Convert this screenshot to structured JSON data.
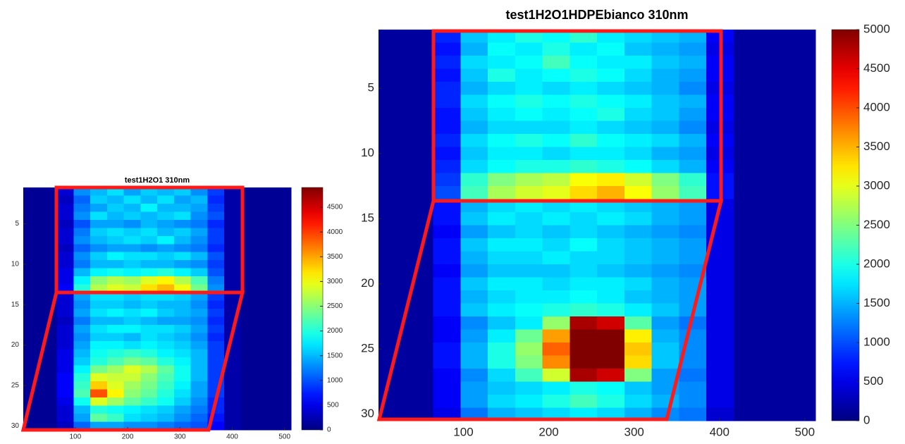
{
  "chart_data": [
    {
      "type": "heatmap",
      "title": "test1H2O1 310nm",
      "colormap": "jet",
      "xbins": [
        0.5,
        32.5,
        64.5,
        96.5,
        128.5,
        160.5,
        192.5,
        224.5,
        256.5,
        288.5,
        320.5,
        352.5,
        384.5,
        416.5,
        448.5,
        480.5,
        512.5
      ],
      "rows": [
        1,
        2,
        3,
        4,
        5,
        6,
        7,
        8,
        9,
        10,
        11,
        12,
        13,
        14,
        15,
        16,
        17,
        18,
        19,
        20,
        21,
        22,
        23,
        24,
        25,
        26,
        27,
        28,
        29,
        30
      ],
      "xlim": [
        0.5,
        512.5
      ],
      "ylim": [
        0.5,
        30.5
      ],
      "xticks": [
        100,
        200,
        300,
        400,
        500
      ],
      "yticks": [
        5,
        10,
        15,
        20,
        25,
        30
      ],
      "clim": [
        0,
        4900
      ],
      "cticks": [
        0,
        500,
        1000,
        1500,
        2000,
        2500,
        3000,
        3500,
        4000,
        4500
      ],
      "values": [
        [
          100,
          100,
          400,
          1300,
          1500,
          1700,
          1400,
          1600,
          1500,
          1600,
          1300,
          900,
          200,
          100,
          100,
          100
        ],
        [
          100,
          100,
          300,
          1100,
          1600,
          1500,
          1700,
          1500,
          1700,
          1400,
          1500,
          800,
          200,
          100,
          100,
          100
        ],
        [
          100,
          100,
          400,
          1200,
          1400,
          1600,
          1500,
          1800,
          1500,
          1500,
          1400,
          900,
          200,
          100,
          100,
          100
        ],
        [
          100,
          100,
          400,
          1300,
          1700,
          1500,
          1600,
          1500,
          1600,
          1700,
          1300,
          1000,
          200,
          100,
          100,
          100
        ],
        [
          100,
          100,
          300,
          1000,
          1400,
          1400,
          1300,
          1500,
          1400,
          1300,
          1200,
          800,
          200,
          100,
          100,
          100
        ],
        [
          100,
          100,
          400,
          1200,
          1600,
          1700,
          1600,
          1700,
          1500,
          1600,
          1400,
          900,
          200,
          100,
          100,
          100
        ],
        [
          100,
          100,
          400,
          1300,
          1500,
          1600,
          1700,
          1600,
          1800,
          1500,
          1300,
          900,
          200,
          100,
          100,
          100
        ],
        [
          100,
          100,
          300,
          1100,
          1300,
          1400,
          1400,
          1300,
          1400,
          1300,
          1200,
          800,
          200,
          100,
          100,
          100
        ],
        [
          100,
          100,
          400,
          1300,
          1600,
          1800,
          1700,
          1700,
          1600,
          1700,
          1500,
          1000,
          200,
          100,
          100,
          100
        ],
        [
          100,
          100,
          400,
          1200,
          1500,
          1500,
          1600,
          1500,
          1500,
          1400,
          1300,
          900,
          200,
          100,
          100,
          100
        ],
        [
          100,
          100,
          500,
          1500,
          1800,
          1900,
          1800,
          1900,
          2000,
          1800,
          1600,
          1000,
          200,
          100,
          100,
          100
        ],
        [
          100,
          100,
          500,
          1800,
          2500,
          2700,
          2600,
          2900,
          3100,
          2700,
          2200,
          1200,
          200,
          100,
          100,
          100
        ],
        [
          100,
          100,
          600,
          2000,
          2700,
          2900,
          2800,
          3200,
          3400,
          3000,
          2400,
          1300,
          200,
          100,
          100,
          100
        ],
        [
          100,
          100,
          400,
          1400,
          1700,
          1700,
          1600,
          1700,
          1700,
          1600,
          1400,
          900,
          200,
          100,
          100,
          100
        ],
        [
          100,
          100,
          400,
          1300,
          1600,
          1600,
          1500,
          1600,
          1500,
          1500,
          1300,
          800,
          200,
          100,
          100,
          100
        ],
        [
          100,
          100,
          400,
          1400,
          1700,
          1800,
          1700,
          1800,
          1600,
          1500,
          1400,
          900,
          200,
          100,
          100,
          100
        ],
        [
          100,
          100,
          300,
          1200,
          1500,
          1500,
          1600,
          1500,
          1400,
          1400,
          1300,
          800,
          200,
          100,
          100,
          100
        ],
        [
          100,
          100,
          400,
          1400,
          1700,
          1800,
          1800,
          1700,
          1700,
          1600,
          1400,
          900,
          200,
          100,
          100,
          100
        ],
        [
          100,
          100,
          400,
          1300,
          1600,
          1600,
          1500,
          1700,
          1600,
          1500,
          1300,
          800,
          200,
          100,
          100,
          100
        ],
        [
          100,
          100,
          400,
          1400,
          1800,
          1800,
          1700,
          1800,
          1700,
          1600,
          1400,
          900,
          200,
          100,
          100,
          100
        ],
        [
          100,
          100,
          500,
          1500,
          1900,
          2000,
          2100,
          2000,
          1800,
          1700,
          1500,
          900,
          200,
          100,
          100,
          100
        ],
        [
          100,
          100,
          500,
          1600,
          2000,
          2200,
          2400,
          2300,
          2000,
          1800,
          1500,
          900,
          200,
          100,
          100,
          100
        ],
        [
          100,
          100,
          500,
          1800,
          2400,
          2600,
          2900,
          2700,
          2300,
          1900,
          1500,
          900,
          200,
          100,
          100,
          100
        ],
        [
          100,
          100,
          600,
          2000,
          2900,
          2800,
          2800,
          2500,
          2200,
          1900,
          1500,
          900,
          200,
          100,
          100,
          100
        ],
        [
          100,
          100,
          600,
          2100,
          3300,
          2900,
          2600,
          2400,
          2100,
          1800,
          1400,
          900,
          200,
          100,
          100,
          100
        ],
        [
          100,
          100,
          600,
          2200,
          3900,
          3100,
          2500,
          2300,
          2000,
          1700,
          1400,
          900,
          200,
          100,
          100,
          100
        ],
        [
          100,
          100,
          500,
          1900,
          2900,
          2600,
          2300,
          2100,
          1900,
          1600,
          1300,
          800,
          200,
          100,
          100,
          100
        ],
        [
          100,
          100,
          400,
          1500,
          2000,
          1900,
          1800,
          1700,
          1600,
          1400,
          1200,
          800,
          200,
          100,
          100,
          100
        ],
        [
          100,
          100,
          400,
          1400,
          2300,
          2100,
          1700,
          1600,
          1500,
          1300,
          1100,
          700,
          200,
          100,
          100,
          100
        ],
        [
          100,
          100,
          300,
          1100,
          1400,
          1400,
          1300,
          1300,
          1200,
          1100,
          1000,
          600,
          200,
          100,
          100,
          100
        ]
      ]
    },
    {
      "type": "heatmap",
      "title": "test1H2O1HDPEbianco 310nm",
      "colormap": "jet",
      "xbins": [
        0.5,
        32.5,
        64.5,
        96.5,
        128.5,
        160.5,
        192.5,
        224.5,
        256.5,
        288.5,
        320.5,
        352.5,
        384.5,
        416.5,
        448.5,
        480.5,
        512.5
      ],
      "rows": [
        1,
        2,
        3,
        4,
        5,
        6,
        7,
        8,
        9,
        10,
        11,
        12,
        13,
        14,
        15,
        16,
        17,
        18,
        19,
        20,
        21,
        22,
        23,
        24,
        25,
        26,
        27,
        28,
        29,
        30
      ],
      "xlim": [
        0.5,
        512.5
      ],
      "ylim": [
        0.5,
        30.5
      ],
      "xticks": [
        100,
        200,
        300,
        400,
        500
      ],
      "yticks": [
        5,
        10,
        15,
        20,
        25,
        30
      ],
      "clim": [
        0,
        5000
      ],
      "cticks": [
        0,
        500,
        1000,
        1500,
        2000,
        2500,
        3000,
        3500,
        4000,
        4500,
        5000
      ],
      "values": [
        [
          150,
          150,
          800,
          1600,
          1800,
          2000,
          1900,
          2100,
          1800,
          1700,
          1600,
          1500,
          600,
          150,
          150,
          150
        ],
        [
          150,
          150,
          700,
          1500,
          1900,
          1800,
          2000,
          1800,
          1900,
          1600,
          1500,
          1400,
          500,
          150,
          150,
          150
        ],
        [
          150,
          150,
          800,
          1700,
          1800,
          1900,
          2200,
          1900,
          1800,
          1800,
          1600,
          1500,
          600,
          150,
          150,
          150
        ],
        [
          150,
          150,
          700,
          1600,
          2000,
          1800,
          1900,
          2000,
          1900,
          1700,
          1500,
          1400,
          600,
          150,
          150,
          150
        ],
        [
          150,
          150,
          800,
          1500,
          1700,
          1800,
          1700,
          1800,
          1700,
          1600,
          1500,
          1300,
          500,
          150,
          150,
          150
        ],
        [
          150,
          150,
          800,
          1700,
          1900,
          2000,
          1900,
          2000,
          1900,
          1800,
          1600,
          1500,
          600,
          150,
          150,
          150
        ],
        [
          150,
          150,
          700,
          1600,
          1800,
          1900,
          1800,
          1900,
          2000,
          1700,
          1600,
          1400,
          600,
          150,
          150,
          150
        ],
        [
          150,
          150,
          700,
          1500,
          1700,
          1700,
          1700,
          1800,
          1700,
          1600,
          1500,
          1300,
          500,
          150,
          150,
          150
        ],
        [
          150,
          150,
          800,
          1700,
          1900,
          2000,
          1900,
          2100,
          1900,
          1800,
          1700,
          1500,
          600,
          150,
          150,
          150
        ],
        [
          150,
          150,
          700,
          1600,
          1800,
          1800,
          1700,
          1800,
          1800,
          1700,
          1500,
          1400,
          500,
          150,
          150,
          150
        ],
        [
          150,
          150,
          800,
          1700,
          1900,
          2000,
          2000,
          2100,
          2000,
          1900,
          1700,
          1500,
          600,
          150,
          150,
          150
        ],
        [
          150,
          150,
          900,
          2100,
          2500,
          2700,
          2800,
          3100,
          3200,
          2900,
          2500,
          2100,
          700,
          150,
          150,
          150
        ],
        [
          150,
          150,
          1000,
          2200,
          2700,
          2900,
          3000,
          3300,
          3500,
          3100,
          2600,
          2200,
          700,
          150,
          150,
          150
        ],
        [
          150,
          150,
          700,
          1500,
          1700,
          1800,
          1700,
          1800,
          1700,
          1600,
          1500,
          1400,
          500,
          150,
          150,
          150
        ],
        [
          150,
          150,
          700,
          1600,
          1800,
          1700,
          1800,
          1700,
          1800,
          1700,
          1500,
          1400,
          500,
          150,
          150,
          150
        ],
        [
          150,
          150,
          600,
          1400,
          1600,
          1700,
          1600,
          1700,
          1600,
          1500,
          1400,
          1300,
          500,
          150,
          150,
          150
        ],
        [
          150,
          150,
          700,
          1600,
          1800,
          1800,
          1700,
          1900,
          1700,
          1600,
          1500,
          1400,
          500,
          150,
          150,
          150
        ],
        [
          150,
          150,
          700,
          1500,
          1700,
          1700,
          1800,
          1700,
          1700,
          1600,
          1500,
          1400,
          500,
          150,
          150,
          150
        ],
        [
          150,
          150,
          600,
          1400,
          1600,
          1600,
          1600,
          1700,
          1600,
          1500,
          1400,
          1300,
          500,
          150,
          150,
          150
        ],
        [
          150,
          150,
          700,
          1600,
          1800,
          1800,
          1700,
          1800,
          1800,
          1700,
          1500,
          1400,
          500,
          150,
          150,
          150
        ],
        [
          150,
          150,
          700,
          1500,
          1700,
          1800,
          1800,
          1900,
          1800,
          1600,
          1500,
          1400,
          500,
          150,
          150,
          150
        ],
        [
          150,
          150,
          700,
          1600,
          1800,
          1900,
          2000,
          2100,
          2000,
          1800,
          1600,
          1400,
          500,
          150,
          150,
          150
        ],
        [
          150,
          150,
          600,
          1300,
          1600,
          1800,
          2600,
          4800,
          4600,
          2300,
          1400,
          1200,
          500,
          150,
          150,
          150
        ],
        [
          150,
          150,
          600,
          1400,
          1800,
          2400,
          3600,
          5000,
          5000,
          3200,
          1500,
          1300,
          500,
          150,
          150,
          150
        ],
        [
          150,
          150,
          700,
          1500,
          2000,
          2600,
          3900,
          5000,
          5000,
          3400,
          1600,
          1300,
          500,
          150,
          150,
          150
        ],
        [
          150,
          150,
          700,
          1500,
          2000,
          2500,
          3700,
          5000,
          5000,
          3300,
          1600,
          1300,
          500,
          150,
          150,
          150
        ],
        [
          150,
          150,
          600,
          1300,
          1700,
          2200,
          2900,
          4800,
          4600,
          2500,
          1400,
          1200,
          500,
          150,
          150,
          150
        ],
        [
          150,
          150,
          600,
          1400,
          1600,
          1700,
          1800,
          2000,
          1900,
          1600,
          1400,
          1300,
          500,
          150,
          150,
          150
        ],
        [
          150,
          150,
          600,
          1400,
          1700,
          1800,
          2000,
          2200,
          2000,
          1700,
          1500,
          1300,
          500,
          150,
          150,
          150
        ],
        [
          150,
          150,
          500,
          1200,
          1500,
          1600,
          1700,
          1800,
          1700,
          1500,
          1300,
          1200,
          400,
          150,
          150,
          150
        ]
      ]
    }
  ]
}
